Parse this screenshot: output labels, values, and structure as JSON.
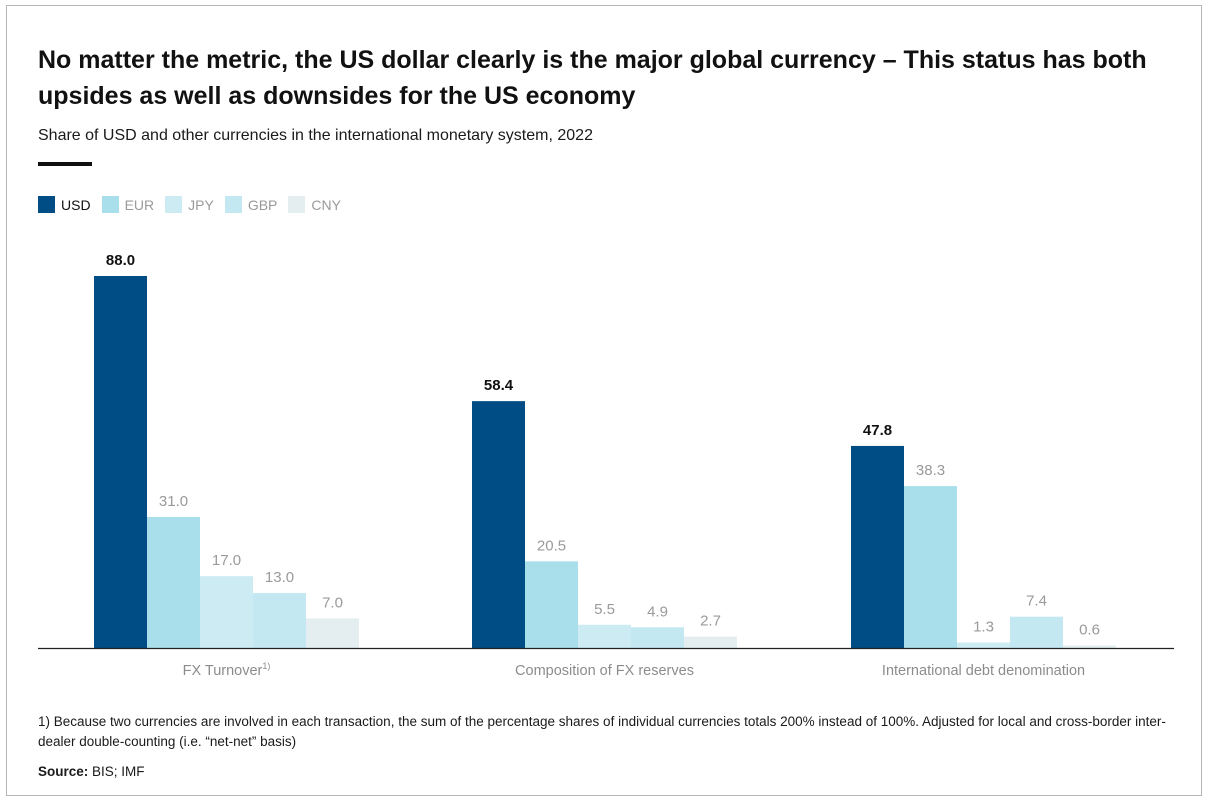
{
  "header": {
    "title": "No matter the metric, the US dollar clearly is the major global currency – This status has both upsides as well as downsides for the US economy",
    "subtitle": "Share of USD and other currencies in the international monetary system, 2022"
  },
  "colors": {
    "USD": "#004c84",
    "EUR": "#a9dfea",
    "JPY": "#cdebf2",
    "GBP": "#c4e8f1",
    "CNY": "#e4eef1"
  },
  "chart_data": {
    "type": "bar",
    "title": "Share of USD and other currencies in the international monetary system, 2022",
    "categories": [
      "FX Turnover",
      "Composition of FX reserves",
      "International debt denomination"
    ],
    "category_notes": [
      "1)",
      "",
      ""
    ],
    "series": [
      {
        "name": "USD",
        "values": [
          88.0,
          58.4,
          47.8
        ]
      },
      {
        "name": "EUR",
        "values": [
          31.0,
          20.5,
          38.3
        ]
      },
      {
        "name": "JPY",
        "values": [
          17.0,
          5.5,
          1.3
        ]
      },
      {
        "name": "GBP",
        "values": [
          13.0,
          4.9,
          7.4
        ]
      },
      {
        "name": "CNY",
        "values": [
          7.0,
          2.7,
          0.6
        ]
      }
    ],
    "value_labels": [
      [
        "88.0",
        "31.0",
        "17.0",
        "13.0",
        "7.0"
      ],
      [
        "58.4",
        "20.5",
        "5.5",
        "4.9",
        "2.7"
      ],
      [
        "47.8",
        "38.3",
        "1.3",
        "7.4",
        "0.6"
      ]
    ],
    "xlabel": "",
    "ylabel": "",
    "ylim": [
      0,
      88
    ],
    "grid": false,
    "legend_position": "top-left"
  },
  "footer": {
    "footnote": "1) Because two currencies are involved in each transaction, the sum of the percentage shares of individual currencies totals 200% instead of 100%. Adjusted for local and cross-border inter-dealer double-counting (i.e. “net-net” basis)",
    "source_label": "Source:",
    "source_text": " BIS; IMF"
  }
}
